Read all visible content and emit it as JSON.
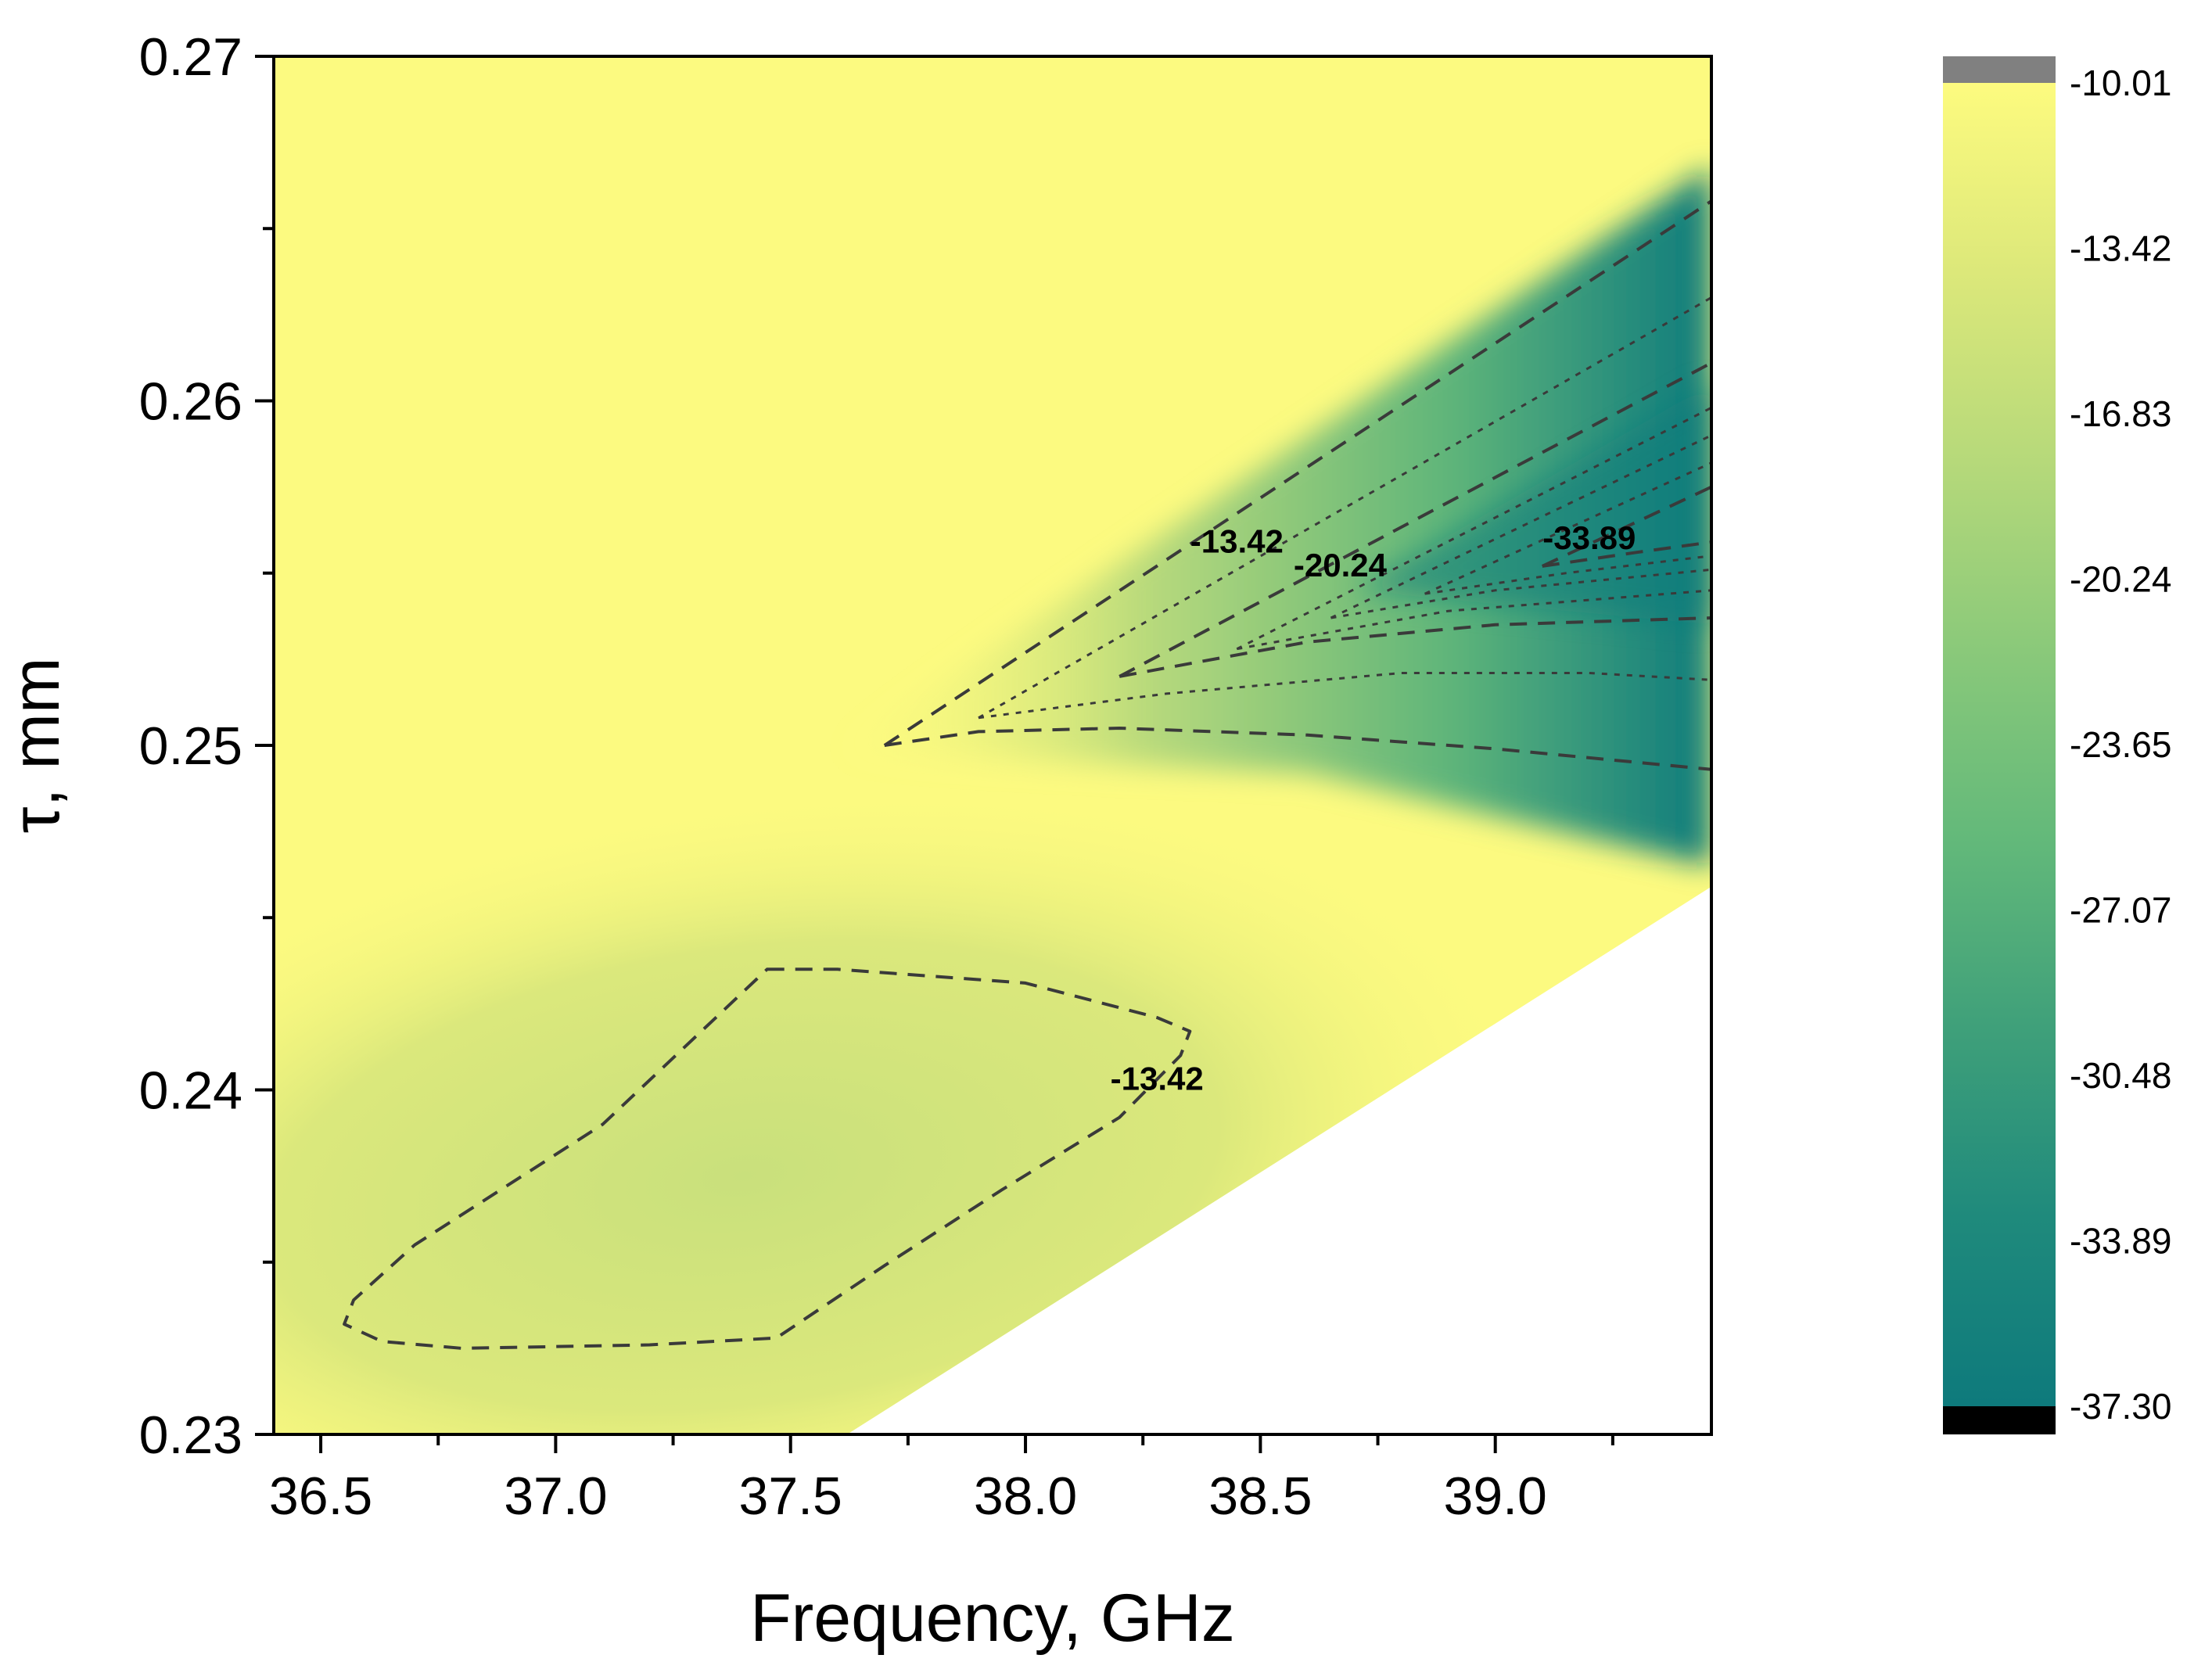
{
  "chart_data": {
    "type": "heatmap",
    "subtype": "filled contour map",
    "xlabel": "Frequency, GHz",
    "ylabel": "τ, mm",
    "xlim": [
      36.4,
      39.46
    ],
    "ylim": [
      0.23,
      0.27
    ],
    "x_ticks": [
      "36.5",
      "37.0",
      "37.5",
      "38.0",
      "38.5",
      "39.0"
    ],
    "y_ticks": [
      "0.23",
      "0.24",
      "0.25",
      "0.26",
      "0.27"
    ],
    "colorbar": {
      "levels": [
        "-10.01",
        "-13.42",
        "-16.83",
        "-20.24",
        "-23.65",
        "-27.07",
        "-30.48",
        "-33.89",
        "-37.30"
      ],
      "over_color": "#808080",
      "under_color": "#000000",
      "gradient": [
        "#fdfb7f",
        "#dce87a",
        "#b6d97a",
        "#8ac97a",
        "#63b97a",
        "#3fa07a",
        "#1f8a7c",
        "#0e7a7c"
      ]
    },
    "domain_boundary": [
      [
        36.4,
        0.23
      ],
      [
        37.62,
        0.23
      ],
      [
        39.46,
        0.2459
      ],
      [
        39.46,
        0.27
      ],
      [
        36.4,
        0.27
      ]
    ],
    "contour_labels": [
      {
        "text": "-13.42",
        "x": 38.45,
        "y": 0.2556
      },
      {
        "text": "-20.24",
        "x": 38.67,
        "y": 0.2549
      },
      {
        "text": "-33.89",
        "x": 39.2,
        "y": 0.2557
      },
      {
        "text": "-13.42",
        "x": 38.28,
        "y": 0.24
      }
    ],
    "contour_lines": [
      {
        "level": "-13.42",
        "style": "dashed",
        "points": [
          [
            37.7,
            0.25
          ],
          [
            39.46,
            0.2658
          ]
        ]
      },
      {
        "level": "-13.42",
        "style": "dashed",
        "points": [
          [
            37.7,
            0.25
          ],
          [
            37.9,
            0.2504
          ],
          [
            38.2,
            0.2505
          ],
          [
            38.6,
            0.2503
          ],
          [
            39.0,
            0.2499
          ],
          [
            39.46,
            0.2493
          ]
        ]
      },
      {
        "level": "-16.83",
        "style": "dotted",
        "points": [
          [
            37.9,
            0.2508
          ],
          [
            39.46,
            0.263
          ]
        ]
      },
      {
        "level": "-16.83",
        "style": "dotted",
        "points": [
          [
            37.9,
            0.2508
          ],
          [
            38.3,
            0.2515
          ],
          [
            38.8,
            0.2521
          ],
          [
            39.2,
            0.2521
          ],
          [
            39.46,
            0.2519
          ]
        ]
      },
      {
        "level": "-20.24",
        "style": "dashed",
        "points": [
          [
            38.2,
            0.252
          ],
          [
            39.46,
            0.2611
          ]
        ]
      },
      {
        "level": "-20.24",
        "style": "dashed",
        "points": [
          [
            38.2,
            0.252
          ],
          [
            38.6,
            0.253
          ],
          [
            39.0,
            0.2535
          ],
          [
            39.46,
            0.2537
          ]
        ]
      },
      {
        "level": "-23.65",
        "style": "dotted",
        "points": [
          [
            38.45,
            0.2528
          ],
          [
            39.46,
            0.2598
          ]
        ]
      },
      {
        "level": "-23.65",
        "style": "dotted",
        "points": [
          [
            38.45,
            0.2528
          ],
          [
            38.9,
            0.2539
          ],
          [
            39.46,
            0.2545
          ]
        ]
      },
      {
        "level": "-27.07",
        "style": "dotted",
        "points": [
          [
            38.65,
            0.2537
          ],
          [
            39.46,
            0.259
          ]
        ]
      },
      {
        "level": "-27.07",
        "style": "dotted",
        "points": [
          [
            38.65,
            0.2537
          ],
          [
            39.0,
            0.2545
          ],
          [
            39.46,
            0.2551
          ]
        ]
      },
      {
        "level": "-30.48",
        "style": "dotted",
        "points": [
          [
            38.85,
            0.2544
          ],
          [
            39.46,
            0.2582
          ]
        ]
      },
      {
        "level": "-30.48",
        "style": "dotted",
        "points": [
          [
            38.85,
            0.2544
          ],
          [
            39.15,
            0.255
          ],
          [
            39.46,
            0.2555
          ]
        ]
      },
      {
        "level": "-33.89",
        "style": "dashed",
        "points": [
          [
            39.1,
            0.2552
          ],
          [
            39.46,
            0.2575
          ]
        ]
      },
      {
        "level": "-33.89",
        "style": "dashed",
        "points": [
          [
            39.1,
            0.2552
          ],
          [
            39.3,
            0.2556
          ],
          [
            39.46,
            0.2559
          ]
        ]
      },
      {
        "level": "-13.42",
        "style": "dashed",
        "closed": true,
        "points": [
          [
            37.45,
            0.2435
          ],
          [
            37.6,
            0.2435
          ],
          [
            38.0,
            0.2431
          ],
          [
            38.28,
            0.2421
          ],
          [
            38.35,
            0.2417
          ],
          [
            38.33,
            0.241
          ],
          [
            38.2,
            0.2392
          ],
          [
            37.95,
            0.2371
          ],
          [
            37.7,
            0.2349
          ],
          [
            37.47,
            0.2328
          ],
          [
            37.2,
            0.2326
          ],
          [
            36.8,
            0.2325
          ],
          [
            36.63,
            0.2327
          ],
          [
            36.55,
            0.2332
          ],
          [
            36.57,
            0.2339
          ],
          [
            36.7,
            0.2355
          ],
          [
            37.1,
            0.239
          ],
          [
            37.45,
            0.2435
          ]
        ]
      }
    ]
  }
}
